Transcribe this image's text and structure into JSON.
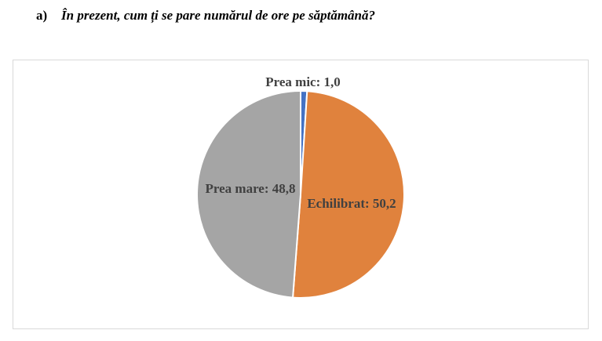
{
  "question": {
    "number": "a)",
    "text": "În prezent, cum ți se pare numărul de ore pe săptămână?"
  },
  "chart_data": {
    "type": "pie",
    "categories": [
      "Prea mic",
      "Echilibrat",
      "Prea mare"
    ],
    "values": [
      1.0,
      50.2,
      48.8
    ],
    "labels": [
      "Prea mic: 1,0",
      "Echilibrat: 50,2",
      "Prea mare: 48,8"
    ],
    "colors": [
      "#4472c4",
      "#e0823d",
      "#a5a5a5"
    ],
    "title": "",
    "legend": "none"
  }
}
